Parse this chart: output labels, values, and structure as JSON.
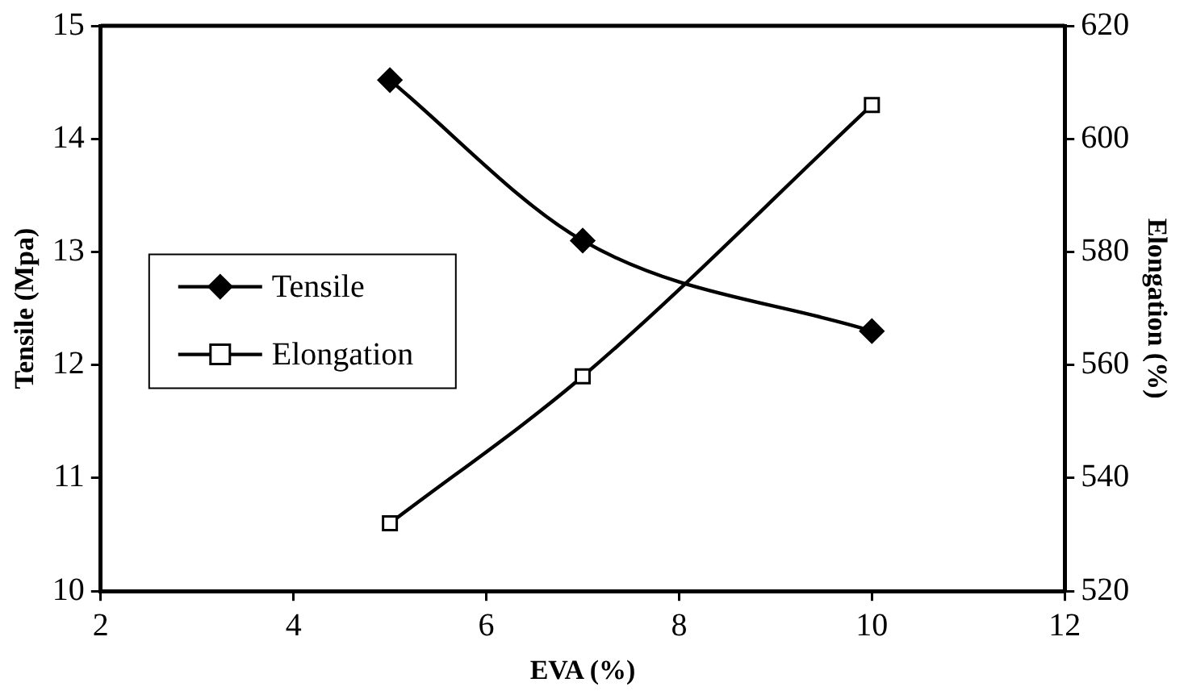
{
  "chart_data": {
    "type": "line",
    "xlabel": "EVA (%)",
    "ylabel": "Tensile (Mpa)",
    "y2label": "Elongation (%)",
    "xlim": [
      2,
      12
    ],
    "xticks": [
      2,
      4,
      6,
      8,
      10,
      12
    ],
    "ylim": [
      10,
      15
    ],
    "yticks": [
      10,
      11,
      12,
      13,
      14,
      15
    ],
    "y2lim": [
      520,
      620
    ],
    "y2ticks": [
      520,
      540,
      560,
      580,
      600,
      620
    ],
    "x": [
      5,
      7,
      10
    ],
    "series": [
      {
        "name": "Tensile",
        "color": "#000000",
        "marker": "diamond",
        "values": [
          14.52,
          13.1,
          12.3
        ]
      },
      {
        "name": "Elongation",
        "color": "#000000",
        "marker": "square",
        "axis": "y2",
        "values": [
          532,
          558,
          606
        ]
      }
    ],
    "grid": false,
    "legend": "left"
  }
}
